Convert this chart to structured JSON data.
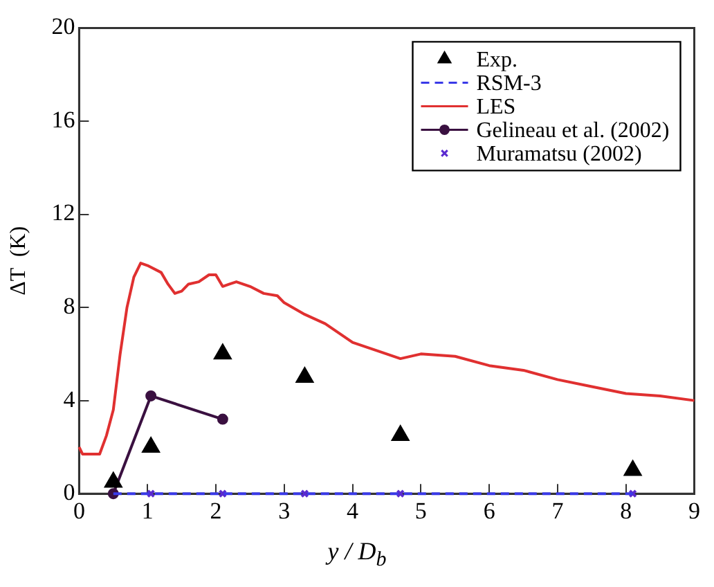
{
  "chart_data": {
    "type": "line",
    "xlabel": "y / D$_{b}$",
    "ylabel": "ΔT  (K)",
    "xlim": [
      0,
      9
    ],
    "xticks": [
      0,
      1,
      2,
      3,
      4,
      5,
      6,
      7,
      8,
      9
    ],
    "ylim": [
      0,
      20
    ],
    "yticks": [
      0,
      4,
      8,
      12,
      16,
      20
    ],
    "grid": false,
    "legend": "top right",
    "series": [
      {
        "name": "Exp.",
        "type": "scatter",
        "marker": "triangle",
        "color": "#000000",
        "x": [
          0.5,
          1.05,
          2.1,
          3.3,
          4.7,
          8.1
        ],
        "values": [
          0.5,
          2,
          6,
          5,
          2.5,
          1
        ]
      },
      {
        "name": "RSM-3",
        "type": "line",
        "marker": "none",
        "line_style": "dashed",
        "color": "#3a3ae8",
        "x": [
          0.5,
          1.05,
          2.1,
          3.3,
          4.7,
          8.1
        ],
        "values": [
          0,
          0,
          0,
          0,
          0,
          0
        ]
      },
      {
        "name": "LES",
        "type": "line",
        "marker": "none",
        "line_style": "solid",
        "color": "#e03030",
        "x": [
          0,
          0.05,
          0.3,
          0.4,
          0.5,
          0.6,
          0.7,
          0.8,
          0.9,
          1.0,
          1.2,
          1.3,
          1.4,
          1.5,
          1.6,
          1.75,
          1.9,
          2.0,
          2.1,
          2.2,
          2.3,
          2.5,
          2.7,
          2.9,
          3.0,
          3.3,
          3.6,
          4.0,
          4.5,
          4.7,
          5.0,
          5.5,
          6.0,
          6.5,
          7.0,
          7.5,
          8.0,
          8.5,
          9.0
        ],
        "values": [
          2,
          1.7,
          1.7,
          2.5,
          3.6,
          6,
          8,
          9.3,
          9.9,
          9.8,
          9.5,
          9.0,
          8.6,
          8.7,
          9.0,
          9.1,
          9.4,
          9.4,
          8.9,
          9.0,
          9.1,
          8.9,
          8.6,
          8.5,
          8.2,
          7.7,
          7.3,
          6.5,
          6.0,
          5.8,
          6.0,
          5.9,
          5.5,
          5.3,
          4.9,
          4.6,
          4.3,
          4.2,
          4.0
        ]
      },
      {
        "name": "Gelineau et al. (2002)",
        "type": "line",
        "marker": "circle",
        "line_style": "solid",
        "color": "#3a1040",
        "x": [
          0.5,
          1.05,
          2.1
        ],
        "values": [
          0,
          4.2,
          3.2
        ]
      },
      {
        "name": "Muramatsu (2002)",
        "type": "scatter",
        "marker": "cross",
        "color": "#5a2ad0",
        "x": [
          1.05,
          2.1,
          3.3,
          4.7,
          8.1
        ],
        "values": [
          0,
          0,
          0,
          0,
          0
        ]
      }
    ]
  }
}
